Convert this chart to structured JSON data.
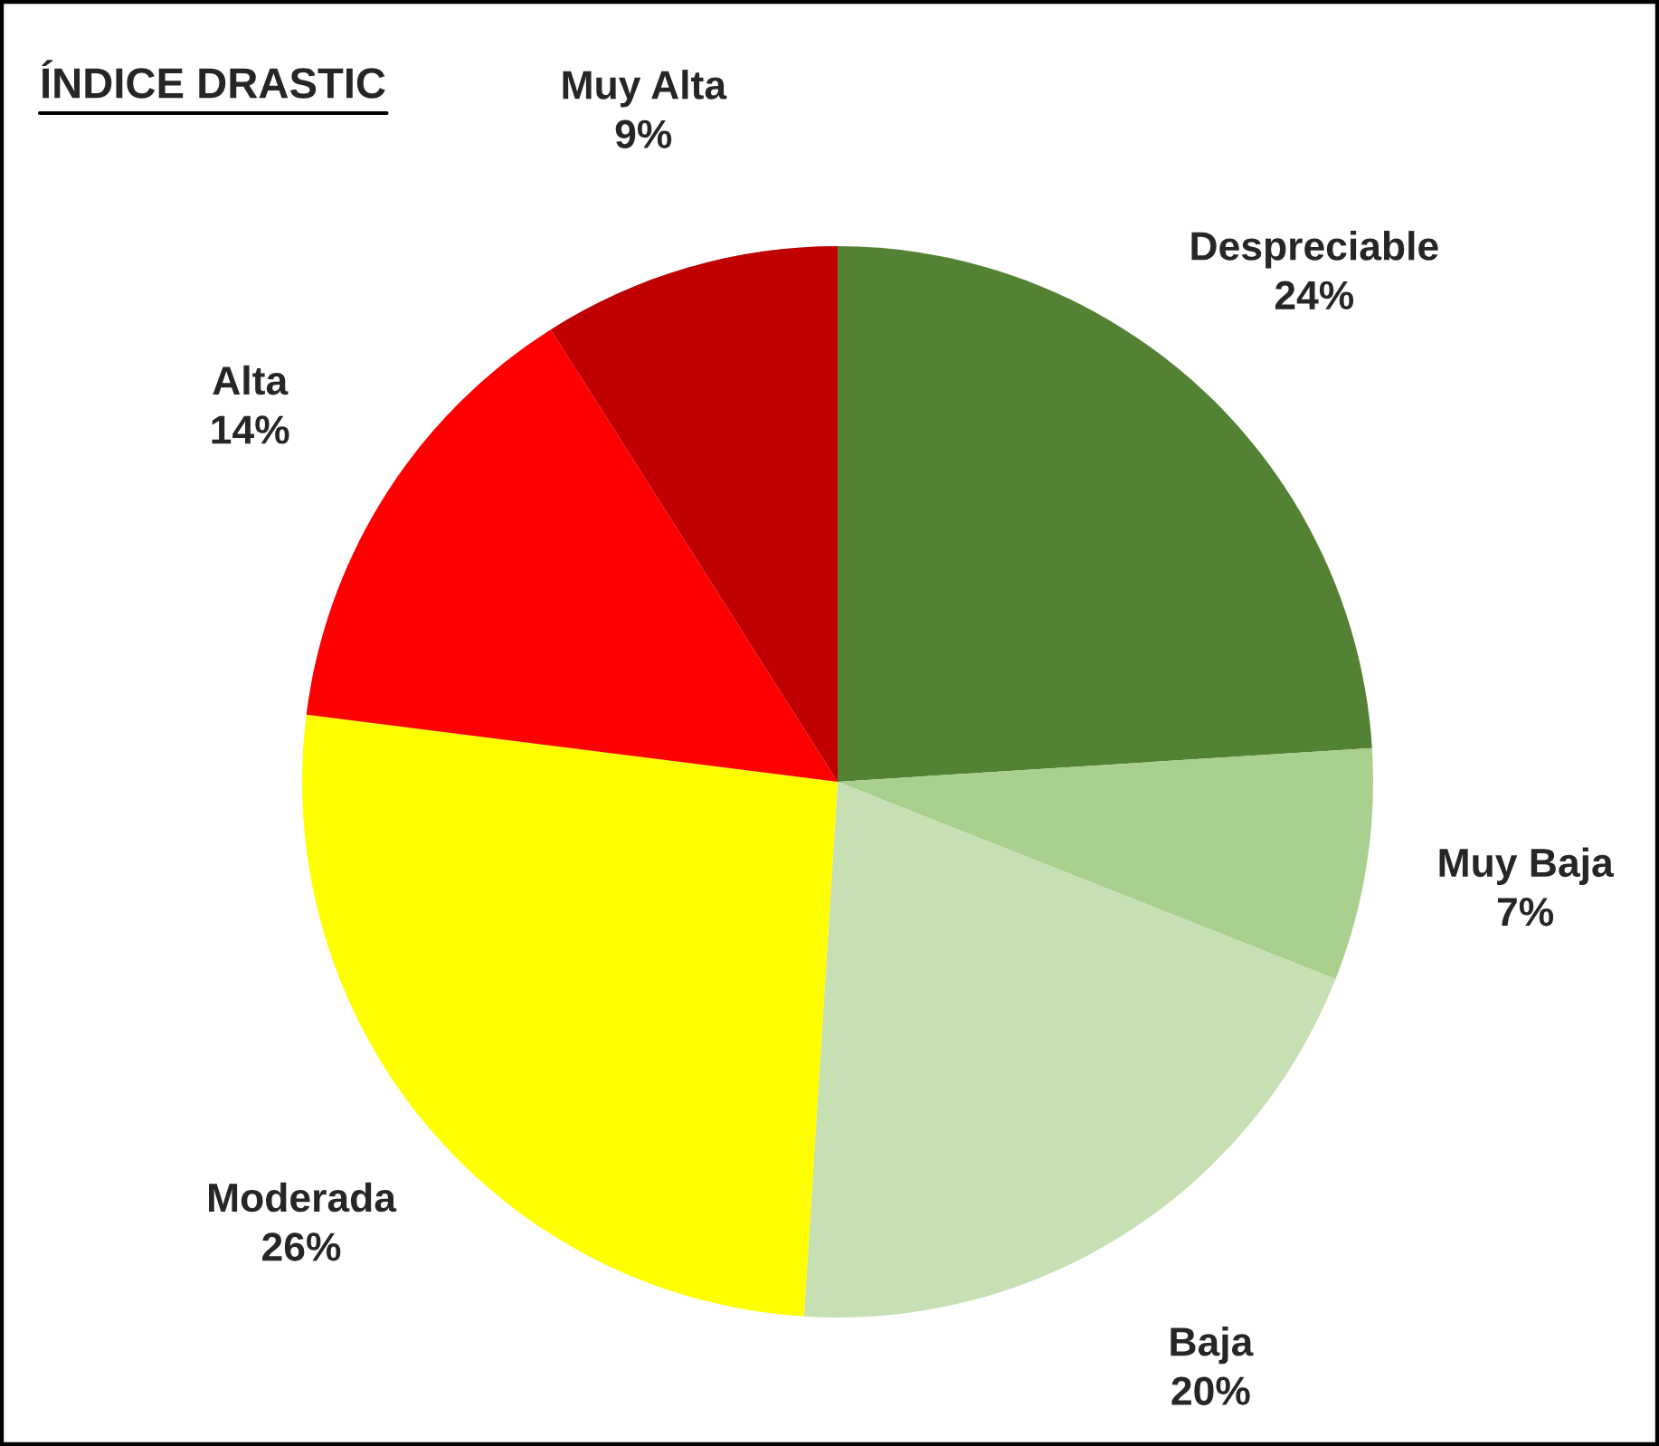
{
  "chart_data": {
    "type": "pie",
    "title": "ÍNDICE DRASTIC",
    "categories": [
      "Despreciable",
      "Muy Baja",
      "Baja",
      "Moderada",
      "Alta",
      "Muy Alta"
    ],
    "values": [
      24,
      7,
      20,
      26,
      14,
      9
    ],
    "value_labels": [
      "24%",
      "7%",
      "20%",
      "26%",
      "14%",
      "9%"
    ],
    "colors": [
      "#548235",
      "#a9d08e",
      "#c6e0b4",
      "#ffff00",
      "#ff0000",
      "#c00000"
    ],
    "legend": false
  }
}
